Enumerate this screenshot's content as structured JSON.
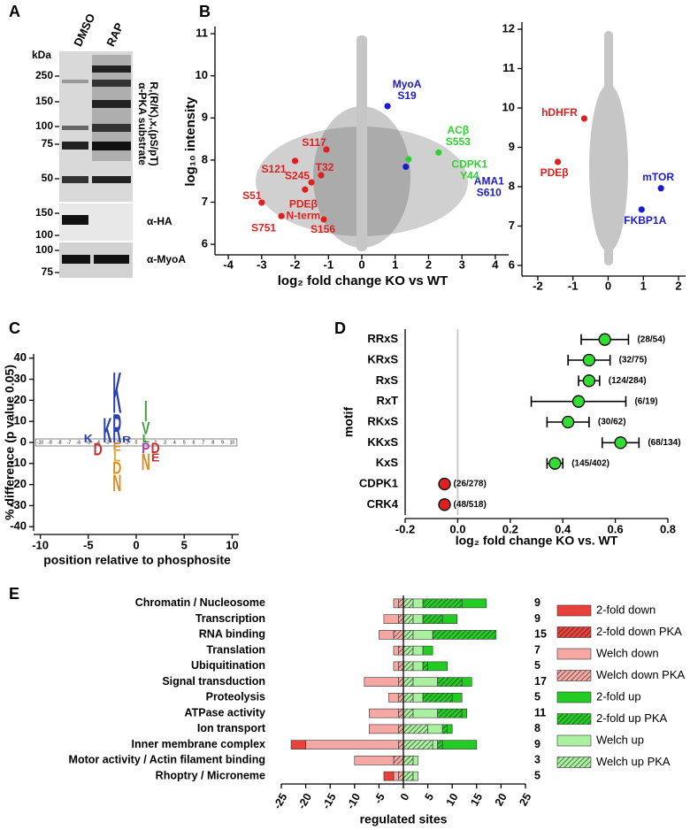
{
  "blot": {
    "panel": "A",
    "lanes": [
      "DMSO",
      "RAP"
    ],
    "unit": "kDa",
    "blots": [
      {
        "antibody": [
          "α-PKA substrate",
          "R,(R/K),x,(pS/pT)"
        ],
        "markers": [
          250,
          150,
          100,
          75,
          50
        ]
      },
      {
        "antibody": [
          "α-HA"
        ],
        "markers": [
          150,
          100
        ]
      },
      {
        "antibody": [
          "α-MyoA"
        ],
        "markers": [
          100,
          75
        ]
      }
    ]
  },
  "chart_data": [
    {
      "type": "scatter",
      "panel": "B",
      "xlabel": "log₂ fold change KO vs WT",
      "ylabel": "log₁₀ intensity",
      "xlim": [
        -4.4,
        4.4
      ],
      "xticks": [
        -4,
        -3,
        -2,
        -1,
        0,
        1,
        2,
        3,
        4
      ],
      "ylim": [
        5.75,
        11.17
      ],
      "yticks": [
        6,
        7,
        8,
        9,
        10,
        11
      ],
      "points": [
        {
          "label": [
            "S121"
          ],
          "x": -2.0,
          "y": 7.98,
          "color": "#e02020"
        },
        {
          "label": [
            "S117"
          ],
          "x": -1.06,
          "y": 8.25,
          "color": "#e02020"
        },
        {
          "label": [
            "T32"
          ],
          "x": -1.22,
          "y": 7.64,
          "color": "#e02020"
        },
        {
          "label": [
            "S245"
          ],
          "x": -1.51,
          "y": 7.47,
          "color": "#e02020"
        },
        {
          "label": [
            "PDEβ",
            "N-term"
          ],
          "x": -1.7,
          "y": 7.3,
          "color": "#e02020"
        },
        {
          "label": [
            "S51"
          ],
          "x": -3.0,
          "y": 6.99,
          "color": "#e02020"
        },
        {
          "label": [
            "S751"
          ],
          "x": -2.41,
          "y": 6.67,
          "color": "#e02020"
        },
        {
          "label": [
            "S156"
          ],
          "x": -1.14,
          "y": 6.59,
          "color": "#e02020"
        },
        {
          "label": [
            "MyoA",
            "S19"
          ],
          "x": 0.77,
          "y": 9.28,
          "color": "#1a1ad0"
        },
        {
          "label": [
            "AMA1",
            "S610"
          ],
          "x": 1.32,
          "y": 7.84,
          "color": "#1a1ad0"
        },
        {
          "label": [
            "ACβ",
            "S553"
          ],
          "x": 1.4,
          "y": 8.02,
          "color": "#30d030"
        },
        {
          "label": [
            "CDPK1",
            "Y44"
          ],
          "x": 2.3,
          "y": 8.18,
          "color": "#30d030"
        }
      ]
    },
    {
      "type": "scatter",
      "xlim": [
        -2.45,
        2.2
      ],
      "xticks": [
        -2,
        -1,
        0,
        1,
        2
      ],
      "ylim": [
        5.73,
        12.18
      ],
      "yticks": [
        6,
        7,
        8,
        9,
        10,
        11,
        12
      ],
      "points": [
        {
          "label": [
            "hDHFR"
          ],
          "x": -0.68,
          "y": 9.73,
          "color": "#e02020"
        },
        {
          "label": [
            "PDEβ"
          ],
          "x": -1.43,
          "y": 8.63,
          "color": "#e02020"
        },
        {
          "label": [
            "mTOR"
          ],
          "x": 1.5,
          "y": 7.96,
          "color": "#1a1ad0"
        },
        {
          "label": [
            "FKBP1A"
          ],
          "x": 0.95,
          "y": 7.42,
          "color": "#1a1ad0"
        }
      ]
    },
    {
      "type": "logo",
      "panel": "C",
      "xlabel": "position relative to phosphosite",
      "ylabel": "% difference (p value 0.05)",
      "xlim": [
        -10.7,
        10.7
      ],
      "xticks": [
        -10,
        -5,
        0,
        5,
        10
      ],
      "ylim": [
        -42,
        42
      ],
      "yticks": [
        -40,
        -30,
        -20,
        -10,
        0,
        10,
        20,
        30,
        40
      ],
      "positions": [
        -10,
        -9,
        -8,
        -7,
        -6,
        -5,
        -4,
        -3,
        -2,
        -1,
        0,
        1,
        2,
        3,
        4,
        5,
        6,
        7,
        8,
        9,
        10
      ],
      "letters": [
        {
          "pos": -5,
          "letter": "K",
          "height": 4,
          "color": "#2a3fb0"
        },
        {
          "pos": -3,
          "letter": "K",
          "height": 12,
          "color": "#2a3fb0"
        },
        {
          "pos": -2,
          "letter": "R",
          "height": 14,
          "color": "#2a3fb0"
        },
        {
          "pos": -2,
          "letter": "K",
          "height": 20,
          "color": "#2a3fb0"
        },
        {
          "pos": -1,
          "letter": "R",
          "height": 3,
          "color": "#2a3fb0"
        },
        {
          "pos": 1,
          "letter": "L",
          "height": 4,
          "color": "#40a040"
        },
        {
          "pos": 1,
          "letter": "V",
          "height": 6,
          "color": "#40a040"
        },
        {
          "pos": 1,
          "letter": "I",
          "height": 10,
          "color": "#40a040"
        },
        {
          "pos": -4,
          "letter": "D",
          "height": -6,
          "color": "#c83030"
        },
        {
          "pos": -2,
          "letter": "E",
          "height": -4,
          "color": "#e08a20"
        },
        {
          "pos": -2,
          "letter": "L",
          "height": -5,
          "color": "#e0b030"
        },
        {
          "pos": -2,
          "letter": "D",
          "height": -6,
          "color": "#e08a20"
        },
        {
          "pos": -2,
          "letter": "N",
          "height": -8,
          "color": "#e08a20"
        },
        {
          "pos": 1,
          "letter": "P",
          "height": -5,
          "color": "#b040b0"
        },
        {
          "pos": 1,
          "letter": "N",
          "height": -8,
          "color": "#e08a20"
        },
        {
          "pos": 2,
          "letter": "D",
          "height": -5,
          "color": "#c83030"
        },
        {
          "pos": 2,
          "letter": "E",
          "height": -4,
          "color": "#c83030"
        }
      ]
    },
    {
      "type": "dot",
      "panel": "D",
      "xlabel": "log₂ fold change KO vs. WT",
      "ylabel": "motif",
      "categories": [
        "RRxS",
        "KRxS",
        "RxS",
        "RxT",
        "RKxS",
        "KKxS",
        "KxS",
        "CDPK1",
        "CRK4"
      ],
      "values": [
        0.56,
        0.5,
        0.5,
        0.46,
        0.42,
        0.62,
        0.37,
        -0.05,
        -0.05
      ],
      "errors": [
        0.09,
        0.08,
        0.04,
        0.18,
        0.08,
        0.07,
        0.03,
        0,
        0
      ],
      "counts": [
        "(28/54)",
        "(32/75)",
        "(124/284)",
        "(6/19)",
        "(30/62)",
        "(68/134)",
        "(145/402)",
        "(26/278)",
        "(48/518)"
      ],
      "colors": [
        "#30dd30",
        "#30dd30",
        "#30dd30",
        "#30dd30",
        "#30dd30",
        "#30dd30",
        "#30dd30",
        "#e02020",
        "#e02020"
      ],
      "xlim": [
        -0.2,
        0.8
      ],
      "xticks": [
        -0.2,
        {
          "value": 0,
          "label": "0.0"
        },
        0.2,
        0.4,
        0.6,
        0.8
      ],
      "zero_line": true
    },
    {
      "type": "bar",
      "panel": "E",
      "xlabel": "regulated sites",
      "categories": [
        "Chromatin / Nucleosome",
        "Transcription",
        "RNA binding",
        "Translation",
        "Ubiquitination",
        "Signal transduction",
        "Proteolysis",
        "ATPase activity",
        "Ion transport",
        "Inner membrane complex",
        "Motor activity / Actin filament binding",
        "Rhoptry / Microneme"
      ],
      "totals": [
        9,
        9,
        15,
        7,
        5,
        17,
        5,
        11,
        8,
        9,
        3,
        5
      ],
      "xlim": [
        -25,
        25
      ],
      "xticks": [
        -25,
        -20,
        -15,
        -10,
        -5,
        0,
        5,
        10,
        15,
        20,
        25
      ],
      "series": [
        {
          "name": "2-fold down",
          "color": "#e8413c",
          "hatch": false,
          "values": [
            0,
            0,
            0,
            0,
            0,
            0,
            0,
            0,
            0,
            -3,
            0,
            -2
          ]
        },
        {
          "name": "2-fold down PKA",
          "color": "#e8413c",
          "hatch": true,
          "values": [
            0,
            0,
            0,
            0,
            0,
            0,
            0,
            0,
            0,
            0,
            0,
            0
          ]
        },
        {
          "name": "Welch down",
          "color": "#f5a7a4",
          "hatch": false,
          "values": [
            -1,
            -3,
            -3,
            -1,
            -1,
            -7,
            -2,
            -6,
            -6,
            -19,
            -8,
            -1
          ]
        },
        {
          "name": "Welch down PKA",
          "color": "#f5a7a4",
          "hatch": true,
          "values": [
            -1,
            -1,
            -2,
            -1,
            -1,
            -1,
            -1,
            -1,
            -1,
            -1,
            -2,
            -1
          ]
        },
        {
          "name": "2-fold up",
          "color": "#22cc22",
          "hatch": false,
          "values": [
            5,
            3,
            0,
            2,
            4,
            2,
            2,
            1,
            1,
            7,
            0,
            0
          ]
        },
        {
          "name": "2-fold up PKA",
          "color": "#22cc22",
          "hatch": true,
          "values": [
            8,
            4,
            13,
            0,
            1,
            5,
            6,
            5,
            1,
            1,
            0,
            0
          ]
        },
        {
          "name": "Welch up",
          "color": "#aaf0a0",
          "hatch": false,
          "values": [
            2,
            2,
            4,
            2,
            2,
            5,
            2,
            5,
            3,
            1,
            1,
            1
          ]
        },
        {
          "name": "Welch up PKA",
          "color": "#aaf0a0",
          "hatch": true,
          "values": [
            2,
            2,
            2,
            2,
            2,
            2,
            2,
            2,
            5,
            6,
            2,
            2
          ]
        }
      ]
    }
  ]
}
